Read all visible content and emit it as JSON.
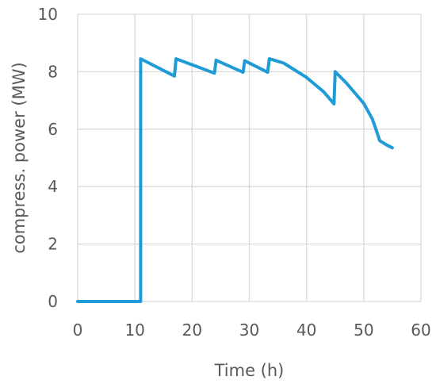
{
  "chart_data": {
    "type": "line",
    "title": "",
    "xlabel": "Time (h)",
    "ylabel": "compress. power (MW)",
    "xlim": [
      0,
      60
    ],
    "ylim": [
      0,
      10
    ],
    "x_ticks": [
      0,
      10,
      20,
      30,
      40,
      50,
      60
    ],
    "y_ticks": [
      0,
      2,
      4,
      6,
      8,
      10
    ],
    "x_tick_labels": [
      "0",
      "10",
      "20",
      "30",
      "40",
      "50",
      "60"
    ],
    "y_tick_labels": [
      "0",
      "2",
      "4",
      "6",
      "8",
      "10"
    ],
    "grid": true,
    "legend": "none",
    "series": [
      {
        "color": "#1f9bd7",
        "x": [
          0,
          11,
          11,
          16.9,
          17.2,
          23.9,
          24.2,
          28.9,
          29.2,
          33.2,
          33.5,
          36,
          40,
          43,
          44.8,
          45,
          47,
          50,
          51.5,
          52.3,
          52.8,
          54,
          55
        ],
        "y": [
          0,
          0,
          8.45,
          7.85,
          8.45,
          7.95,
          8.4,
          7.98,
          8.38,
          7.98,
          8.45,
          8.3,
          7.8,
          7.3,
          6.88,
          8.0,
          7.6,
          6.9,
          6.35,
          5.9,
          5.6,
          5.45,
          5.35
        ]
      }
    ]
  }
}
